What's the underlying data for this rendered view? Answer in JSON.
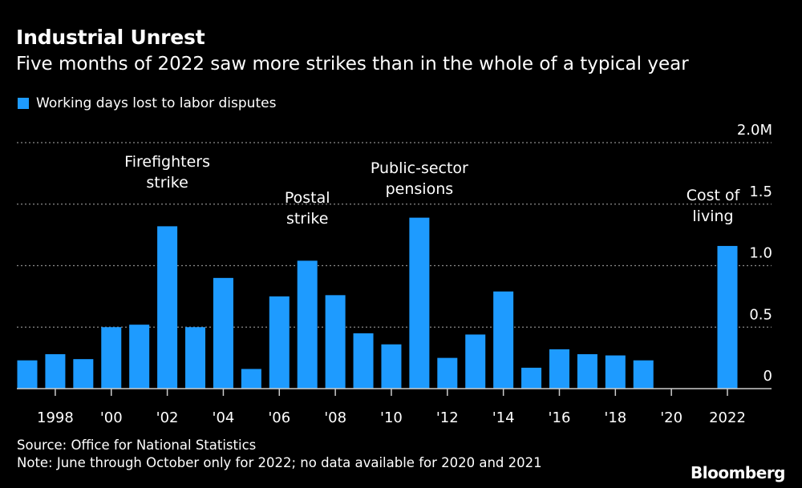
{
  "header": {
    "title": "Industrial Unrest",
    "subtitle": "Five months of 2022 saw more strikes than in the whole of a typical year"
  },
  "legend": {
    "label": "Working days lost to labor disputes",
    "color": "#1e9bff"
  },
  "footer": {
    "source": "Source: Office for National Statistics",
    "note": "Note: June through October only for 2022; no data available for 2020 and 2021",
    "brand": "Bloomberg"
  },
  "chart_data": {
    "type": "bar",
    "title": "Industrial Unrest",
    "subtitle": "Five months of 2022 saw more strikes than in the whole of a typical year",
    "xlabel": "",
    "ylabel": "",
    "ylim": [
      0,
      2.0
    ],
    "y_unit": "M",
    "y_axis_position": "right",
    "grid": true,
    "legend_placement": "top-left",
    "y_ticks": [
      {
        "value": 0,
        "label": "0"
      },
      {
        "value": 0.5,
        "label": "0.5"
      },
      {
        "value": 1.0,
        "label": "1.0"
      },
      {
        "value": 1.5,
        "label": "1.5"
      },
      {
        "value": 2.0,
        "label": "2.0M"
      }
    ],
    "x_ticks": [
      {
        "value": 1998,
        "label": "1998"
      },
      {
        "value": 2000,
        "label": "'00"
      },
      {
        "value": 2002,
        "label": "'02"
      },
      {
        "value": 2004,
        "label": "'04"
      },
      {
        "value": 2006,
        "label": "'06"
      },
      {
        "value": 2008,
        "label": "'08"
      },
      {
        "value": 2010,
        "label": "'10"
      },
      {
        "value": 2012,
        "label": "'12"
      },
      {
        "value": 2014,
        "label": "'14"
      },
      {
        "value": 2016,
        "label": "'16"
      },
      {
        "value": 2018,
        "label": "'18"
      },
      {
        "value": 2020,
        "label": "'20"
      },
      {
        "value": 2022,
        "label": "2022"
      }
    ],
    "series": [
      {
        "name": "Working days lost to labor disputes",
        "color": "#1e9bff",
        "x": [
          1997,
          1998,
          1999,
          2000,
          2001,
          2002,
          2003,
          2004,
          2005,
          2006,
          2007,
          2008,
          2009,
          2010,
          2011,
          2012,
          2013,
          2014,
          2015,
          2016,
          2017,
          2018,
          2019,
          2022
        ],
        "values": [
          0.23,
          0.28,
          0.24,
          0.5,
          0.52,
          1.32,
          0.5,
          0.9,
          0.16,
          0.75,
          1.04,
          0.76,
          0.45,
          0.36,
          1.39,
          0.25,
          0.44,
          0.79,
          0.17,
          0.32,
          0.28,
          0.27,
          0.23,
          1.16
        ]
      }
    ],
    "annotations": [
      {
        "x": 2002,
        "lines": [
          "Firefighters",
          "strike"
        ]
      },
      {
        "x": 2007,
        "lines": [
          "Postal",
          "strike"
        ]
      },
      {
        "x": 2011,
        "lines": [
          "Public-sector",
          "pensions"
        ]
      },
      {
        "x": 2022,
        "lines": [
          "Cost of",
          "living"
        ]
      }
    ]
  }
}
